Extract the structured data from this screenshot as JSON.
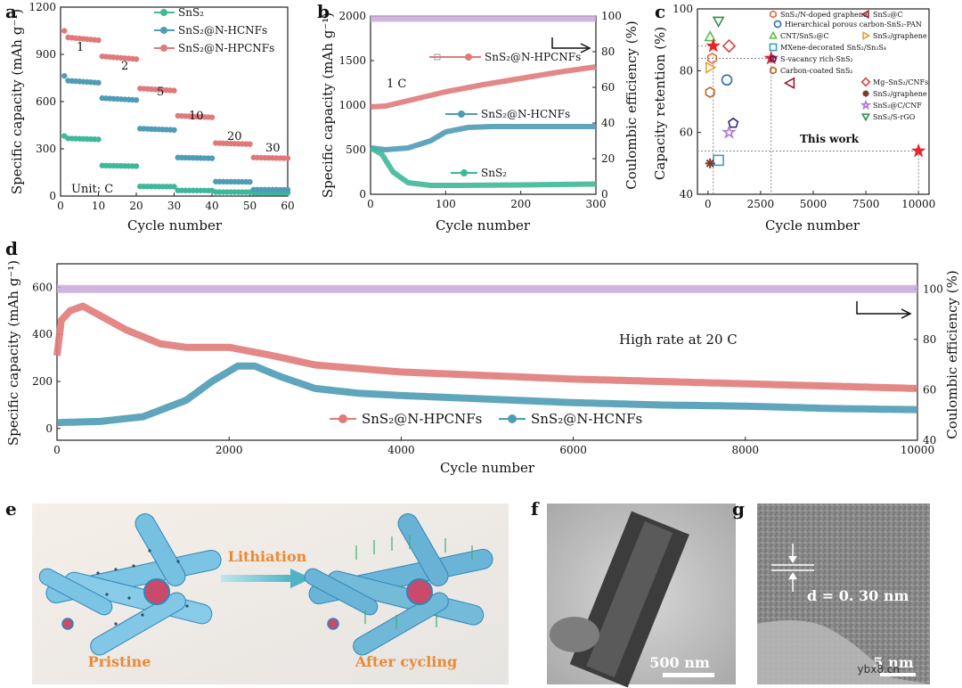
{
  "panels": {
    "a": {
      "label": "a",
      "chart_data": {
        "type": "scatter",
        "xlabel": "Cycle number",
        "ylabel": "Specific capacity (mAh g⁻¹)",
        "xlim": [
          0,
          60
        ],
        "ylim": [
          0,
          1200
        ],
        "xticks": [
          0,
          10,
          20,
          30,
          40,
          50,
          60
        ],
        "yticks": [
          0,
          300,
          600,
          900,
          1200
        ],
        "rate_labels": [
          "1",
          "2",
          "5",
          "10",
          "20",
          "30"
        ],
        "unit_note": "Unit: C",
        "series": [
          {
            "name": "SnS₂",
            "color": "#3fb899",
            "stages": [
              360,
              190,
              60,
              35,
              25,
              20
            ]
          },
          {
            "name": "SnS₂@N-HCNFs",
            "color": "#4e9cb5",
            "stages": [
              720,
              610,
              420,
              240,
              90,
              40
            ]
          },
          {
            "name": "SnS₂@N-HPCNFs",
            "color": "#e07a7a",
            "stages": [
              990,
              870,
              670,
              500,
              330,
              240
            ]
          }
        ]
      }
    },
    "b": {
      "label": "b",
      "chart_data": {
        "type": "line",
        "xlabel": "Cycle number",
        "ylabel": "Specific capacity (mAh g⁻¹)",
        "y2label": "Coulombic efficiency (%)",
        "xlim": [
          0,
          300
        ],
        "ylim": [
          0,
          2000
        ],
        "y2lim": [
          0,
          100
        ],
        "xticks": [
          0,
          100,
          200,
          300
        ],
        "yticks": [
          0,
          500,
          1000,
          1500,
          2000
        ],
        "y2ticks": [
          0,
          20,
          40,
          60,
          80,
          100
        ],
        "rate_note": "1 C",
        "series": [
          {
            "name": "SnS₂@N-HPCNFs",
            "color": "#e07a7a",
            "x": [
              0,
              20,
              50,
              100,
              150,
              200,
              250,
              300
            ],
            "y": [
              980,
              990,
              1050,
              1150,
              1230,
              1300,
              1370,
              1430
            ]
          },
          {
            "name": "SnS₂@N-HCNFs",
            "color": "#4e9cb5",
            "x": [
              0,
              20,
              50,
              80,
              100,
              130,
              160,
              200,
              300
            ],
            "y": [
              520,
              500,
              520,
              600,
              700,
              750,
              760,
              760,
              760
            ]
          },
          {
            "name": "SnS₂",
            "color": "#3fb899",
            "x": [
              0,
              15,
              30,
              50,
              80,
              120,
              200,
              300
            ],
            "y": [
              520,
              450,
              250,
              130,
              100,
              100,
              105,
              115
            ]
          },
          {
            "name": "Coulombic efficiency",
            "color": "#c8a8d8",
            "axis": "y2",
            "x": [
              0,
              300
            ],
            "y": [
              98.5,
              98.5
            ]
          }
        ]
      }
    },
    "c": {
      "label": "c",
      "chart_data": {
        "type": "scatter",
        "xlabel": "Cycle number",
        "ylabel": "Capacity retention (%)",
        "xlim": [
          -500,
          10500
        ],
        "ylim": [
          40,
          100
        ],
        "xticks": [
          0,
          2500,
          5000,
          7500,
          10000
        ],
        "yticks": [
          40,
          60,
          80,
          100
        ],
        "this_work_label": "This work",
        "points": [
          {
            "name": "SnS₂/N-doped graphene",
            "marker": "hexagon",
            "color": "#d9713b",
            "x": 200,
            "y": 84
          },
          {
            "name": "SnS₂@C",
            "marker": "tri-left",
            "color": "#9b1c2e",
            "x": 3900,
            "y": 76
          },
          {
            "name": "Hierarchical porous carbon-SnS₂-PAN",
            "marker": "circle",
            "color": "#2a6fb0",
            "x": 900,
            "y": 77
          },
          {
            "name": "Mg–SnS₂/CNFs",
            "marker": "diamond",
            "color": "#e0404a",
            "x": 1000,
            "y": 88
          },
          {
            "name": "CNT/SnS₂@C",
            "marker": "tri-up",
            "color": "#5cbd4c",
            "x": 100,
            "y": 91
          },
          {
            "name": "SnS₂/graphene",
            "marker": "tri-right",
            "color": "#e9a032",
            "x": 100,
            "y": 81
          },
          {
            "name": "MXene-decorated SnS₂/Sn₃S₄",
            "marker": "square",
            "color": "#3b9bd4",
            "x": 500,
            "y": 51
          },
          {
            "name": "S-vacancy rich-SnS₂",
            "marker": "pentagon",
            "color": "#2b2b7c",
            "x": 1200,
            "y": 63
          },
          {
            "name": "Carbon-coated SnS₂",
            "marker": "hexagon",
            "color": "#b66a2a",
            "x": 100,
            "y": 73
          },
          {
            "name": "SnS₂/graphene",
            "marker": "asterisk",
            "color": "#7b3b2a",
            "x": 100,
            "y": 50
          },
          {
            "name": "SnS₂@C/CNF",
            "marker": "star-open",
            "color": "#b07ad0",
            "x": 1000,
            "y": 60
          },
          {
            "name": "SnS₂/S-rGO",
            "marker": "tri-down",
            "color": "#2f8f4a",
            "x": 500,
            "y": 96
          },
          {
            "name": "This work",
            "marker": "star",
            "color": "#e8232a",
            "x": 250,
            "y": 88
          },
          {
            "name": "This work",
            "marker": "star",
            "color": "#e8232a",
            "x": 3000,
            "y": 84
          },
          {
            "name": "This work",
            "marker": "star",
            "color": "#e8232a",
            "x": 10000,
            "y": 54
          }
        ],
        "legend": [
          {
            "name": "SnS₂/N-doped graphene",
            "marker": "hexagon",
            "color": "#d9713b"
          },
          {
            "name": "SnS₂@C",
            "marker": "tri-left",
            "color": "#9b1c2e"
          },
          {
            "name": "Hierarchical porous carbon-SnS₂-PAN",
            "marker": "circle",
            "color": "#2a6fb0"
          },
          {
            "name": "CNT/SnS₂@C",
            "marker": "tri-up",
            "color": "#5cbd4c"
          },
          {
            "name": "SnS₂/graphene",
            "marker": "tri-right",
            "color": "#e9a032"
          },
          {
            "name": "MXene-decorated SnS₂/Sn₃S₄",
            "marker": "square",
            "color": "#3b9bd4"
          },
          {
            "name": "S-vacancy rich-SnS₂",
            "marker": "pentagon",
            "color": "#2b2b7c"
          },
          {
            "name": "Carbon-coated SnS₂",
            "marker": "hexagon",
            "color": "#b66a2a"
          },
          {
            "name": "Mg–SnS₂/CNFs",
            "marker": "diamond",
            "color": "#e0404a"
          },
          {
            "name": "SnS₂/graphene",
            "marker": "asterisk",
            "color": "#7b3b2a"
          },
          {
            "name": "SnS₂@C/CNF",
            "marker": "star-open",
            "color": "#b07ad0"
          },
          {
            "name": "SnS₂/S-rGO",
            "marker": "tri-down",
            "color": "#2f8f4a"
          }
        ]
      }
    },
    "d": {
      "label": "d",
      "chart_data": {
        "type": "line",
        "xlabel": "Cycle number",
        "ylabel": "Specific capacity (mAh g⁻¹)",
        "y2label": "Coulombic efficiency (%)",
        "xlim": [
          0,
          10000
        ],
        "ylim": [
          -50,
          700
        ],
        "y2lim": [
          40,
          110
        ],
        "xticks": [
          0,
          2000,
          4000,
          6000,
          8000,
          10000
        ],
        "yticks": [
          0,
          200,
          400,
          600
        ],
        "y2ticks": [
          40,
          60,
          80,
          100
        ],
        "rate_note": "High rate at 20 C",
        "series": [
          {
            "name": "SnS₂@N-HPCNFs",
            "color": "#e07a7a",
            "x": [
              0,
              50,
              150,
              300,
              500,
              800,
              1200,
              1500,
              2000,
              2500,
              3000,
              4000,
              5000,
              6000,
              7000,
              8000,
              9000,
              10000
            ],
            "y": [
              310,
              460,
              500,
              520,
              480,
              420,
              360,
              345,
              345,
              310,
              270,
              240,
              225,
              210,
              200,
              190,
              180,
              170
            ]
          },
          {
            "name": "SnS₂@N-HCNFs",
            "color": "#4e9cb5",
            "x": [
              0,
              500,
              1000,
              1500,
              1800,
              2100,
              2300,
              2600,
              3000,
              3500,
              4000,
              5000,
              6000,
              7000,
              8000,
              9000,
              10000
            ],
            "y": [
              25,
              30,
              50,
              120,
              200,
              265,
              265,
              220,
              170,
              150,
              140,
              125,
              110,
              100,
              95,
              85,
              80
            ]
          },
          {
            "name": "Coulombic efficiency",
            "color": "#c8a8d8",
            "axis": "y2",
            "x": [
              0,
              10000
            ],
            "y": [
              100,
              100
            ]
          }
        ]
      }
    },
    "e": {
      "label": "e",
      "action": "Lithiation",
      "left_caption": "Pristine",
      "right_caption": "After cycling"
    },
    "f": {
      "label": "f",
      "scale": "500 nm"
    },
    "g": {
      "label": "g",
      "spacing": "d = 0. 30 nm",
      "scale": "5 nm"
    }
  },
  "watermark": "ybx8.cn"
}
